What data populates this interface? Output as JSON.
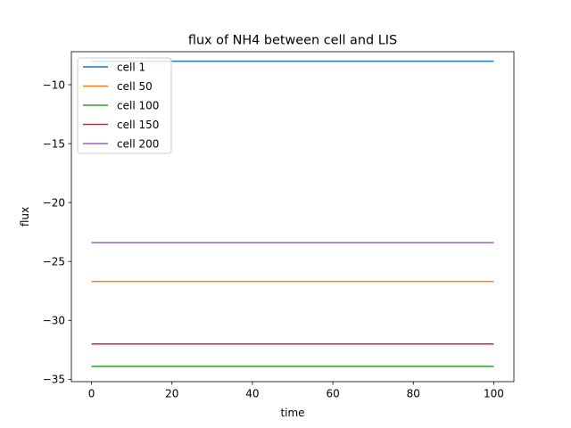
{
  "chart_data": {
    "type": "line",
    "title": "flux of NH4 between cell and LIS",
    "xlabel": "time",
    "ylabel": "flux",
    "xlim": [
      -5,
      105
    ],
    "ylim": [
      -35.2,
      -7.2
    ],
    "x_ticks": [
      0,
      20,
      40,
      60,
      80,
      100
    ],
    "y_ticks": [
      -35,
      -30,
      -25,
      -20,
      -15,
      -10
    ],
    "x_tick_labels": [
      "0",
      "20",
      "40",
      "60",
      "80",
      "100"
    ],
    "y_tick_labels": [
      "−35",
      "−30",
      "−25",
      "−20",
      "−15",
      "−10"
    ],
    "grid": false,
    "legend_position": "top-left",
    "x": [
      0,
      100
    ],
    "series": [
      {
        "name": "cell 1",
        "values": [
          -8.0,
          -8.0
        ],
        "color": "#1f77b4"
      },
      {
        "name": "cell 50",
        "values": [
          -26.7,
          -26.7
        ],
        "color": "#ff7f0e"
      },
      {
        "name": "cell 100",
        "values": [
          -33.9,
          -33.9
        ],
        "color": "#2ca02c"
      },
      {
        "name": "cell 150",
        "values": [
          -32.0,
          -32.0
        ],
        "color": "#d62728"
      },
      {
        "name": "cell 200",
        "values": [
          -23.4,
          -23.4
        ],
        "color": "#9467bd"
      }
    ]
  }
}
